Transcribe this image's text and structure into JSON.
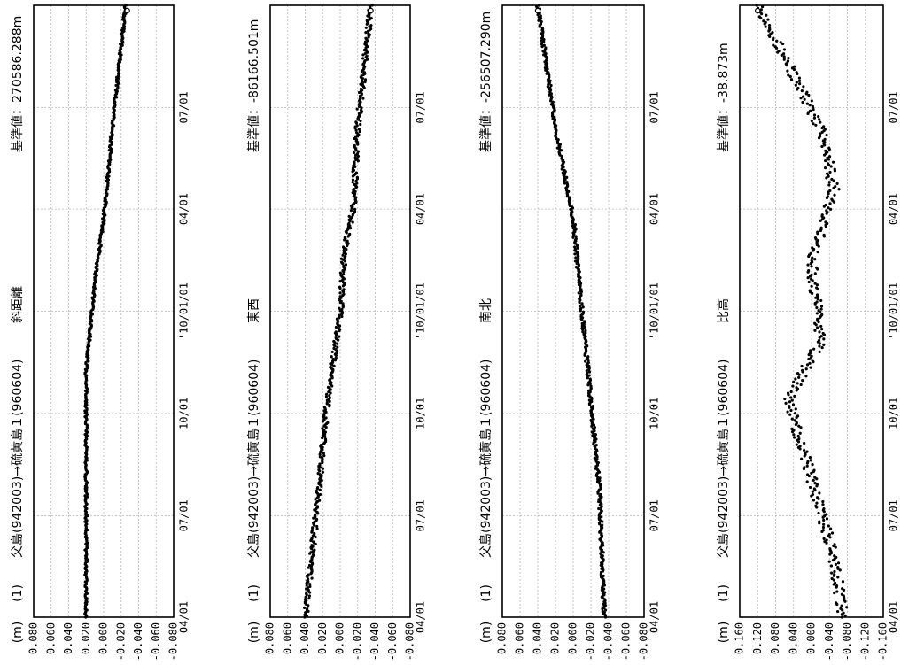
{
  "chart_data": [
    {
      "type": "scatter",
      "panel_index": 0,
      "series_id": "(1)",
      "station_path": "父島(942003)→硫黄島１(960604)",
      "component": "斜距離",
      "reference": "基準値：270586.288m",
      "unit": "(m)",
      "ylim": [
        0.08,
        -0.08
      ],
      "ytick_labels": [
        "0.080",
        "0.060",
        "0.040",
        "0.020",
        "0.000",
        "-0.020",
        "-0.040",
        "-0.060",
        "-0.080"
      ],
      "ytick_values": [
        0.08,
        0.06,
        0.04,
        0.02,
        0.0,
        -0.02,
        -0.04,
        -0.06,
        -0.08
      ],
      "xtick_labels": [
        "04/01",
        "07/01",
        "10/01",
        "'10/01/01",
        "04/01",
        "07/01"
      ],
      "x_range": [
        "2009-04-01",
        "2010-09-01"
      ],
      "grid": true,
      "trend": [
        [
          0,
          0.02
        ],
        [
          0.2,
          0.02
        ],
        [
          0.4,
          0.02
        ],
        [
          0.55,
          0.01
        ],
        [
          0.65,
          0.0
        ],
        [
          0.8,
          -0.01
        ],
        [
          1.0,
          -0.025
        ]
      ],
      "noise": 0.0015,
      "end_marker": -0.027,
      "point_count": 520
    },
    {
      "type": "scatter",
      "panel_index": 1,
      "series_id": "(1)",
      "station_path": "父島(942003)→硫黄島１(960604)",
      "component": "東西",
      "reference": "基準値：-86166.501m",
      "unit": "(m)",
      "ylim": [
        0.08,
        -0.08
      ],
      "ytick_labels": [
        "0.080",
        "0.060",
        "0.040",
        "0.020",
        "0.000",
        "-0.020",
        "-0.040",
        "-0.060",
        "-0.080"
      ],
      "ytick_values": [
        0.08,
        0.06,
        0.04,
        0.02,
        0.0,
        -0.02,
        -0.04,
        -0.06,
        -0.08
      ],
      "xtick_labels": [
        "04/01",
        "07/01",
        "10/01",
        "'10/01/01",
        "04/01",
        "07/01"
      ],
      "x_range": [
        "2009-04-01",
        "2010-09-01"
      ],
      "grid": true,
      "trend": [
        [
          0,
          0.04
        ],
        [
          0.2,
          0.025
        ],
        [
          0.35,
          0.015
        ],
        [
          0.5,
          0.0
        ],
        [
          0.6,
          -0.005
        ],
        [
          0.67,
          -0.015
        ],
        [
          0.8,
          -0.02
        ],
        [
          1.0,
          -0.035
        ]
      ],
      "noise": 0.003,
      "end_marker": -0.035,
      "point_count": 520
    },
    {
      "type": "scatter",
      "panel_index": 2,
      "series_id": "(1)",
      "station_path": "父島(942003)→硫黄島１(960604)",
      "component": "南北",
      "reference": "基準値：-256507.290m",
      "unit": "(m)",
      "ylim": [
        0.08,
        -0.08
      ],
      "ytick_labels": [
        "0.080",
        "0.060",
        "0.040",
        "0.020",
        "0.000",
        "-0.020",
        "-0.040",
        "-0.060",
        "-0.080"
      ],
      "ytick_values": [
        0.08,
        0.06,
        0.04,
        0.02,
        0.0,
        -0.02,
        -0.04,
        -0.06,
        -0.08
      ],
      "xtick_labels": [
        "04/01",
        "07/01",
        "10/01",
        "'10/01/01",
        "04/01",
        "07/01"
      ],
      "x_range": [
        "2009-04-01",
        "2010-09-01"
      ],
      "grid": true,
      "trend": [
        [
          0,
          -0.035
        ],
        [
          0.2,
          -0.03
        ],
        [
          0.35,
          -0.02
        ],
        [
          0.5,
          -0.01
        ],
        [
          0.65,
          0.0
        ],
        [
          0.8,
          0.02
        ],
        [
          1.0,
          0.04
        ]
      ],
      "noise": 0.002,
      "end_marker": 0.04,
      "point_count": 520
    },
    {
      "type": "scatter",
      "panel_index": 3,
      "series_id": "(1)",
      "station_path": "父島(942003)→硫黄島１(960604)",
      "component": "比高",
      "reference": "基準値：-38.873m",
      "unit": "(m)",
      "ylim": [
        0.16,
        -0.16
      ],
      "ytick_labels": [
        "0.160",
        "0.120",
        "0.080",
        "0.040",
        "0.000",
        "-0.040",
        "-0.080",
        "-0.120",
        "-0.160"
      ],
      "ytick_values": [
        0.16,
        0.12,
        0.08,
        0.04,
        0.0,
        -0.04,
        -0.08,
        -0.12,
        -0.16
      ],
      "xtick_labels": [
        "04/01",
        "07/01",
        "10/01",
        "'10/01/01",
        "04/01",
        "07/01"
      ],
      "x_range": [
        "2009-04-01",
        "2010-09-01"
      ],
      "grid": true,
      "trend": [
        [
          0,
          -0.07
        ],
        [
          0.1,
          -0.05
        ],
        [
          0.2,
          -0.01
        ],
        [
          0.3,
          0.03
        ],
        [
          0.36,
          0.05
        ],
        [
          0.45,
          -0.02
        ],
        [
          0.58,
          0.0
        ],
        [
          0.7,
          -0.05
        ],
        [
          0.8,
          -0.02
        ],
        [
          0.9,
          0.05
        ],
        [
          1.0,
          0.12
        ]
      ],
      "noise": 0.012,
      "end_marker": 0.12,
      "point_count": 430
    }
  ]
}
